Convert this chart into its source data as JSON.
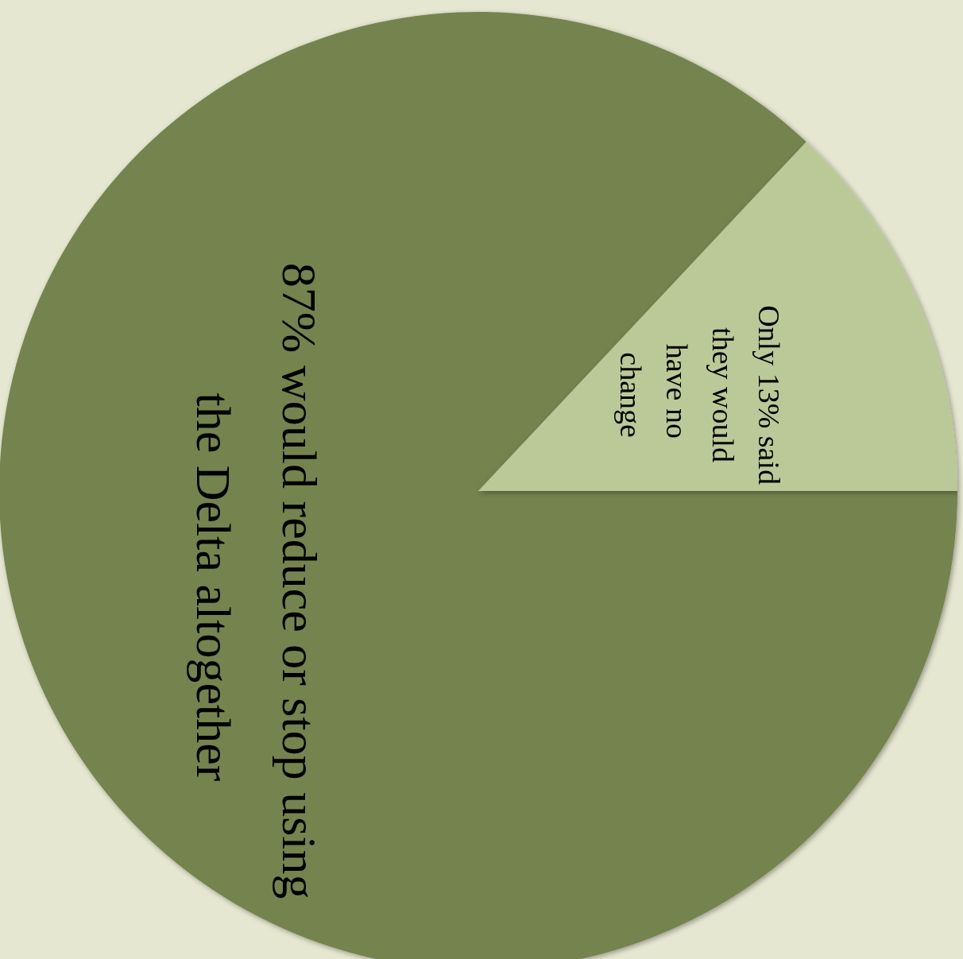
{
  "chart_data": {
    "type": "pie",
    "categories": [
      "87% would reduce or stop using the Delta altogether",
      "Only 13% said they would have no change"
    ],
    "values": [
      87,
      13
    ],
    "colors": [
      "#748350",
      "#bbc898"
    ],
    "legend": false
  }
}
